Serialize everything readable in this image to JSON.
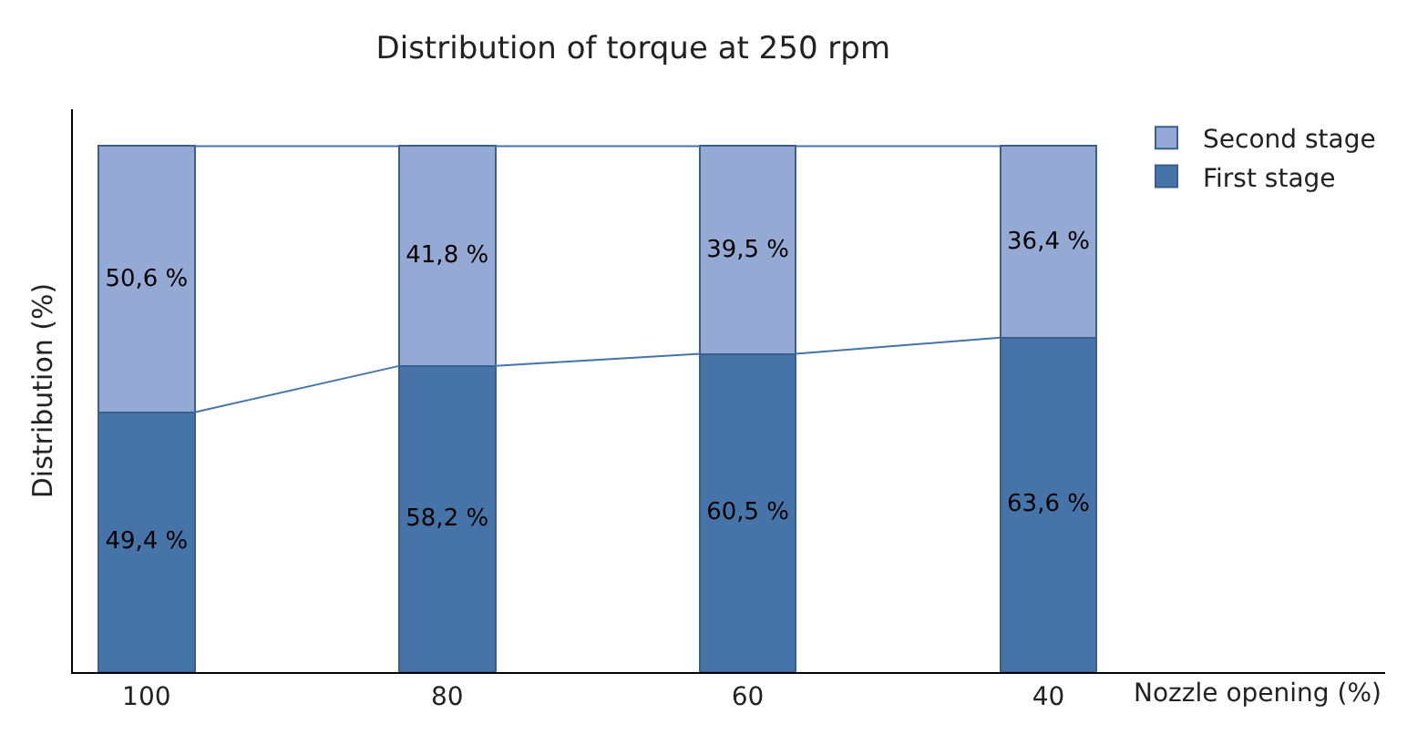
{
  "chart_data": {
    "type": "bar",
    "stacked": true,
    "title": "Distribution of torque at 250 rpm",
    "xlabel": "Nozzle opening (%)",
    "ylabel": "Distribution (%)",
    "categories": [
      "100",
      "80",
      "60",
      "40"
    ],
    "ylim": [
      0,
      107
    ],
    "tick_labels": "x",
    "legend": "top right",
    "series": [
      {
        "name": "First stage",
        "color": "#4674a9",
        "values": [
          49.4,
          58.2,
          60.5,
          63.6
        ],
        "value_labels": [
          "49,4 %",
          "58,2 %",
          "60,5 %",
          "63,6 %"
        ]
      },
      {
        "name": "Second stage",
        "color": "#95a9d5",
        "values": [
          50.6,
          41.8,
          39.5,
          36.4
        ],
        "value_labels": [
          "50,6 %",
          "41,8 %",
          "39,5 %",
          "36,4 %"
        ]
      }
    ]
  }
}
